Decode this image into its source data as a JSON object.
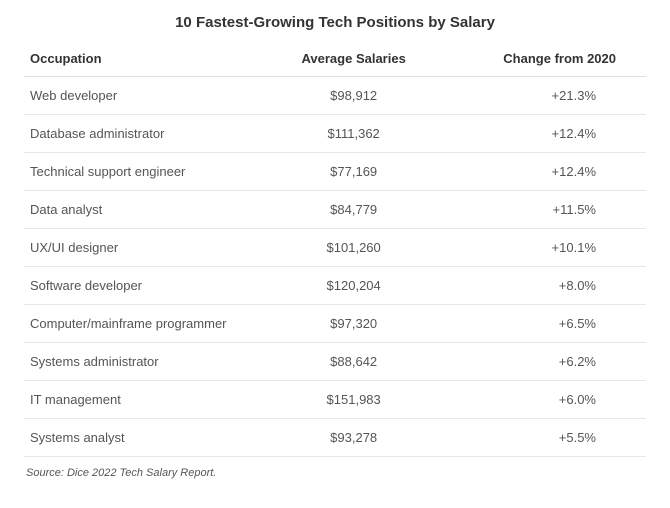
{
  "title": "10 Fastest-Growing Tech Positions by Salary",
  "table": {
    "type": "table",
    "columns": [
      "Occupation",
      "Average Salaries",
      "Change from 2020"
    ],
    "rows": [
      {
        "occupation": "Web developer",
        "salary": "$98,912",
        "change": "+21.3%"
      },
      {
        "occupation": "Database administrator",
        "salary": "$111,362",
        "change": "+12.4%"
      },
      {
        "occupation": "Technical support engineer",
        "salary": "$77,169",
        "change": "+12.4%"
      },
      {
        "occupation": "Data analyst",
        "salary": "$84,779",
        "change": "+11.5%"
      },
      {
        "occupation": "UX/UI designer",
        "salary": "$101,260",
        "change": "+10.1%"
      },
      {
        "occupation": "Software developer",
        "salary": "$120,204",
        "change": "+8.0%"
      },
      {
        "occupation": "Computer/mainframe programmer",
        "salary": "$97,320",
        "change": "+6.5%"
      },
      {
        "occupation": "Systems administrator",
        "salary": "$88,642",
        "change": "+6.2%"
      },
      {
        "occupation": "IT management",
        "salary": "$151,983",
        "change": "+6.0%"
      },
      {
        "occupation": "Systems analyst",
        "salary": "$93,278",
        "change": "+5.5%"
      }
    ],
    "border_color": "#e0e0e0",
    "text_color": "#555555",
    "header_color": "#333333",
    "font_size": 13
  },
  "source": "Source: Dice 2022 Tech Salary Report."
}
